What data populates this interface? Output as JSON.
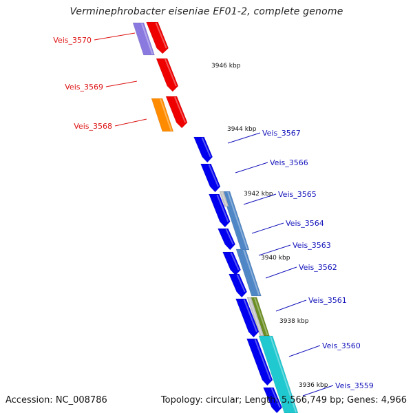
{
  "title": "Verminephrobacter eiseniae EF01-2, complete genome",
  "footer": {
    "accession": "Accession: NC_008786",
    "topology": "Topology: circular; Length: 5,566,749 bp; Genes: 4,966"
  },
  "colors": {
    "backbone": "#808080",
    "tick": "#2a8a2a",
    "left_label": "#dd1111",
    "right_label": "#1111bb"
  },
  "kbp_labels": [
    "3946 kbp",
    "3944 kbp",
    "3942 kbp",
    "3940 kbp",
    "3938 kbp",
    "3936 kbp"
  ],
  "left_genes": [
    {
      "label": "Veis_3570",
      "color": "#ee0000"
    },
    {
      "label": "Veis_3569",
      "color": "#ee0000"
    },
    {
      "label": "Veis_3568",
      "color": "#ee0000"
    }
  ],
  "right_genes": [
    {
      "label": "Veis_3567",
      "color": "#0000ee"
    },
    {
      "label": "Veis_3566",
      "color": "#0000ee"
    },
    {
      "label": "Veis_3565",
      "color": "#0000ee"
    },
    {
      "label": "Veis_3564",
      "color": "#0000ee"
    },
    {
      "label": "Veis_3563",
      "color": "#0000ee"
    },
    {
      "label": "Veis_3562",
      "color": "#0000ee"
    },
    {
      "label": "Veis_3561",
      "color": "#0000ee"
    },
    {
      "label": "Veis_3560",
      "color": "#0000ee"
    },
    {
      "label": "Veis_3559",
      "color": "#0000ee"
    }
  ],
  "feature_colors": {
    "left_lavender": "#8a7ae0",
    "left_orange": "#ff8c00",
    "right_steelblue": "#4f86c6",
    "right_grey": "#c0c0c0",
    "right_olive": "#6b8e23",
    "right_cyan": "#20c8d0"
  }
}
